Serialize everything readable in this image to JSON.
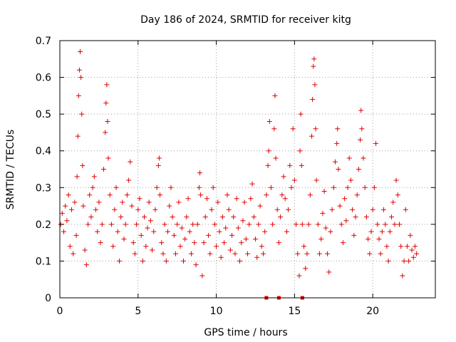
{
  "chart_data": {
    "type": "scatter",
    "title": "Day 186 of 2024, SRMTID for receiver kitg",
    "xlabel": "GPS time / hours",
    "ylabel": "SRMTID / TECUs",
    "xlim": [
      0,
      24
    ],
    "ylim": [
      0,
      0.7
    ],
    "xticks": [
      0,
      5,
      10,
      15,
      20
    ],
    "yticks": [
      0,
      0.1,
      0.2,
      0.3,
      0.4,
      0.5,
      0.6,
      0.7
    ],
    "x_tick_labels": [
      "0",
      "5",
      "10",
      "15",
      "20"
    ],
    "y_tick_labels": [
      "0",
      "0.1",
      "0.2",
      "0.3",
      "0.4",
      "0.5",
      "0.6",
      "0.7"
    ],
    "grid": true,
    "marker": "+",
    "color": "#e00000",
    "gap_markers_at_zero": [
      13.2,
      14.0,
      15.5
    ],
    "series": [
      {
        "name": "SRMTID",
        "points": [
          [
            0.05,
            0.2
          ],
          [
            0.15,
            0.23
          ],
          [
            0.25,
            0.18
          ],
          [
            0.35,
            0.25
          ],
          [
            0.45,
            0.21
          ],
          [
            0.55,
            0.28
          ],
          [
            0.65,
            0.14
          ],
          [
            0.75,
            0.24
          ],
          [
            0.85,
            0.12
          ],
          [
            0.95,
            0.26
          ],
          [
            1.05,
            0.17
          ],
          [
            1.1,
            0.33
          ],
          [
            1.15,
            0.44
          ],
          [
            1.2,
            0.55
          ],
          [
            1.25,
            0.62
          ],
          [
            1.3,
            0.67
          ],
          [
            1.35,
            0.6
          ],
          [
            1.4,
            0.5
          ],
          [
            1.45,
            0.36
          ],
          [
            1.5,
            0.25
          ],
          [
            1.6,
            0.13
          ],
          [
            1.7,
            0.09
          ],
          [
            1.8,
            0.2
          ],
          [
            1.9,
            0.28
          ],
          [
            2.0,
            0.22
          ],
          [
            2.1,
            0.3
          ],
          [
            2.2,
            0.33
          ],
          [
            2.3,
            0.24
          ],
          [
            2.4,
            0.18
          ],
          [
            2.5,
            0.26
          ],
          [
            2.6,
            0.15
          ],
          [
            2.7,
            0.2
          ],
          [
            2.8,
            0.35
          ],
          [
            2.9,
            0.45
          ],
          [
            2.95,
            0.53
          ],
          [
            3.0,
            0.58
          ],
          [
            3.05,
            0.48
          ],
          [
            3.1,
            0.38
          ],
          [
            3.2,
            0.28
          ],
          [
            3.3,
            0.2
          ],
          [
            3.4,
            0.14
          ],
          [
            3.5,
            0.24
          ],
          [
            3.6,
            0.3
          ],
          [
            3.7,
            0.18
          ],
          [
            3.8,
            0.1
          ],
          [
            3.9,
            0.22
          ],
          [
            4.0,
            0.26
          ],
          [
            4.1,
            0.16
          ],
          [
            4.2,
            0.2
          ],
          [
            4.3,
            0.28
          ],
          [
            4.4,
            0.32
          ],
          [
            4.5,
            0.37
          ],
          [
            4.6,
            0.25
          ],
          [
            4.7,
            0.15
          ],
          [
            4.8,
            0.12
          ],
          [
            4.9,
            0.2
          ],
          [
            5.0,
            0.24
          ],
          [
            5.1,
            0.27
          ],
          [
            5.2,
            0.17
          ],
          [
            5.3,
            0.1
          ],
          [
            5.4,
            0.22
          ],
          [
            5.5,
            0.14
          ],
          [
            5.6,
            0.19
          ],
          [
            5.7,
            0.26
          ],
          [
            5.8,
            0.21
          ],
          [
            5.9,
            0.13
          ],
          [
            6.0,
            0.18
          ],
          [
            6.1,
            0.24
          ],
          [
            6.2,
            0.3
          ],
          [
            6.3,
            0.36
          ],
          [
            6.35,
            0.38
          ],
          [
            6.4,
            0.28
          ],
          [
            6.5,
            0.15
          ],
          [
            6.6,
            0.12
          ],
          [
            6.7,
            0.2
          ],
          [
            6.8,
            0.1
          ],
          [
            6.9,
            0.18
          ],
          [
            7.0,
            0.25
          ],
          [
            7.1,
            0.3
          ],
          [
            7.2,
            0.22
          ],
          [
            7.3,
            0.17
          ],
          [
            7.4,
            0.12
          ],
          [
            7.5,
            0.2
          ],
          [
            7.6,
            0.26
          ],
          [
            7.7,
            0.14
          ],
          [
            7.8,
            0.19
          ],
          [
            7.9,
            0.1
          ],
          [
            8.0,
            0.16
          ],
          [
            8.1,
            0.22
          ],
          [
            8.2,
            0.27
          ],
          [
            8.3,
            0.18
          ],
          [
            8.4,
            0.12
          ],
          [
            8.5,
            0.2
          ],
          [
            8.6,
            0.15
          ],
          [
            8.7,
            0.09
          ],
          [
            8.8,
            0.2
          ],
          [
            8.9,
            0.3
          ],
          [
            8.95,
            0.34
          ],
          [
            9.0,
            0.28
          ],
          [
            9.1,
            0.06
          ],
          [
            9.2,
            0.15
          ],
          [
            9.3,
            0.22
          ],
          [
            9.4,
            0.27
          ],
          [
            9.5,
            0.17
          ],
          [
            9.6,
            0.12
          ],
          [
            9.7,
            0.24
          ],
          [
            9.8,
            0.3
          ],
          [
            9.9,
            0.2
          ],
          [
            10.0,
            0.14
          ],
          [
            10.1,
            0.26
          ],
          [
            10.2,
            0.18
          ],
          [
            10.3,
            0.11
          ],
          [
            10.4,
            0.22
          ],
          [
            10.5,
            0.15
          ],
          [
            10.6,
            0.19
          ],
          [
            10.7,
            0.28
          ],
          [
            10.8,
            0.24
          ],
          [
            10.9,
            0.13
          ],
          [
            11.0,
            0.17
          ],
          [
            11.1,
            0.22
          ],
          [
            11.2,
            0.12
          ],
          [
            11.3,
            0.27
          ],
          [
            11.4,
            0.19
          ],
          [
            11.5,
            0.1
          ],
          [
            11.6,
            0.15
          ],
          [
            11.7,
            0.21
          ],
          [
            11.8,
            0.26
          ],
          [
            11.9,
            0.16
          ],
          [
            12.0,
            0.12
          ],
          [
            12.1,
            0.2
          ],
          [
            12.2,
            0.27
          ],
          [
            12.3,
            0.31
          ],
          [
            12.4,
            0.22
          ],
          [
            12.5,
            0.16
          ],
          [
            12.6,
            0.11
          ],
          [
            12.7,
            0.2
          ],
          [
            12.8,
            0.25
          ],
          [
            12.9,
            0.14
          ],
          [
            13.0,
            0.12
          ],
          [
            13.1,
            0.18
          ],
          [
            13.2,
            0.28
          ],
          [
            13.3,
            0.36
          ],
          [
            13.35,
            0.4
          ],
          [
            13.4,
            0.48
          ],
          [
            13.5,
            0.3
          ],
          [
            13.6,
            0.2
          ],
          [
            13.7,
            0.46
          ],
          [
            13.75,
            0.55
          ],
          [
            13.8,
            0.38
          ],
          [
            13.9,
            0.24
          ],
          [
            14.0,
            0.15
          ],
          [
            14.1,
            0.22
          ],
          [
            14.2,
            0.28
          ],
          [
            14.3,
            0.33
          ],
          [
            14.4,
            0.27
          ],
          [
            14.5,
            0.18
          ],
          [
            14.6,
            0.24
          ],
          [
            14.7,
            0.36
          ],
          [
            14.8,
            0.3
          ],
          [
            14.9,
            0.46
          ],
          [
            15.0,
            0.32
          ],
          [
            15.1,
            0.2
          ],
          [
            15.2,
            0.12
          ],
          [
            15.3,
            0.06
          ],
          [
            15.35,
            0.4
          ],
          [
            15.4,
            0.5
          ],
          [
            15.45,
            0.36
          ],
          [
            15.5,
            0.2
          ],
          [
            15.6,
            0.14
          ],
          [
            15.7,
            0.08
          ],
          [
            15.8,
            0.12
          ],
          [
            15.9,
            0.2
          ],
          [
            16.0,
            0.28
          ],
          [
            16.1,
            0.44
          ],
          [
            16.15,
            0.54
          ],
          [
            16.2,
            0.63
          ],
          [
            16.25,
            0.65
          ],
          [
            16.3,
            0.58
          ],
          [
            16.35,
            0.46
          ],
          [
            16.4,
            0.32
          ],
          [
            16.5,
            0.2
          ],
          [
            16.6,
            0.12
          ],
          [
            16.7,
            0.16
          ],
          [
            16.8,
            0.23
          ],
          [
            16.9,
            0.29
          ],
          [
            17.0,
            0.19
          ],
          [
            17.1,
            0.12
          ],
          [
            17.2,
            0.07
          ],
          [
            17.3,
            0.18
          ],
          [
            17.4,
            0.24
          ],
          [
            17.5,
            0.3
          ],
          [
            17.6,
            0.37
          ],
          [
            17.7,
            0.42
          ],
          [
            17.75,
            0.46
          ],
          [
            17.8,
            0.35
          ],
          [
            17.9,
            0.25
          ],
          [
            18.0,
            0.2
          ],
          [
            18.1,
            0.15
          ],
          [
            18.2,
            0.27
          ],
          [
            18.3,
            0.21
          ],
          [
            18.4,
            0.3
          ],
          [
            18.5,
            0.38
          ],
          [
            18.6,
            0.32
          ],
          [
            18.7,
            0.24
          ],
          [
            18.8,
            0.17
          ],
          [
            18.9,
            0.22
          ],
          [
            19.0,
            0.28
          ],
          [
            19.1,
            0.35
          ],
          [
            19.2,
            0.43
          ],
          [
            19.25,
            0.51
          ],
          [
            19.3,
            0.46
          ],
          [
            19.4,
            0.38
          ],
          [
            19.5,
            0.3
          ],
          [
            19.6,
            0.22
          ],
          [
            19.7,
            0.16
          ],
          [
            19.8,
            0.12
          ],
          [
            19.9,
            0.18
          ],
          [
            20.0,
            0.24
          ],
          [
            20.1,
            0.3
          ],
          [
            20.2,
            0.42
          ],
          [
            20.3,
            0.2
          ],
          [
            20.4,
            0.16
          ],
          [
            20.5,
            0.12
          ],
          [
            20.6,
            0.18
          ],
          [
            20.7,
            0.24
          ],
          [
            20.8,
            0.2
          ],
          [
            20.9,
            0.14
          ],
          [
            21.0,
            0.1
          ],
          [
            21.1,
            0.18
          ],
          [
            21.2,
            0.22
          ],
          [
            21.3,
            0.26
          ],
          [
            21.4,
            0.2
          ],
          [
            21.5,
            0.32
          ],
          [
            21.6,
            0.28
          ],
          [
            21.7,
            0.2
          ],
          [
            21.8,
            0.14
          ],
          [
            21.9,
            0.06
          ],
          [
            22.0,
            0.1
          ],
          [
            22.1,
            0.24
          ],
          [
            22.2,
            0.14
          ],
          [
            22.3,
            0.1
          ],
          [
            22.4,
            0.17
          ],
          [
            22.5,
            0.13
          ],
          [
            22.6,
            0.11
          ],
          [
            22.7,
            0.14
          ],
          [
            22.8,
            0.12
          ]
        ]
      }
    ]
  }
}
